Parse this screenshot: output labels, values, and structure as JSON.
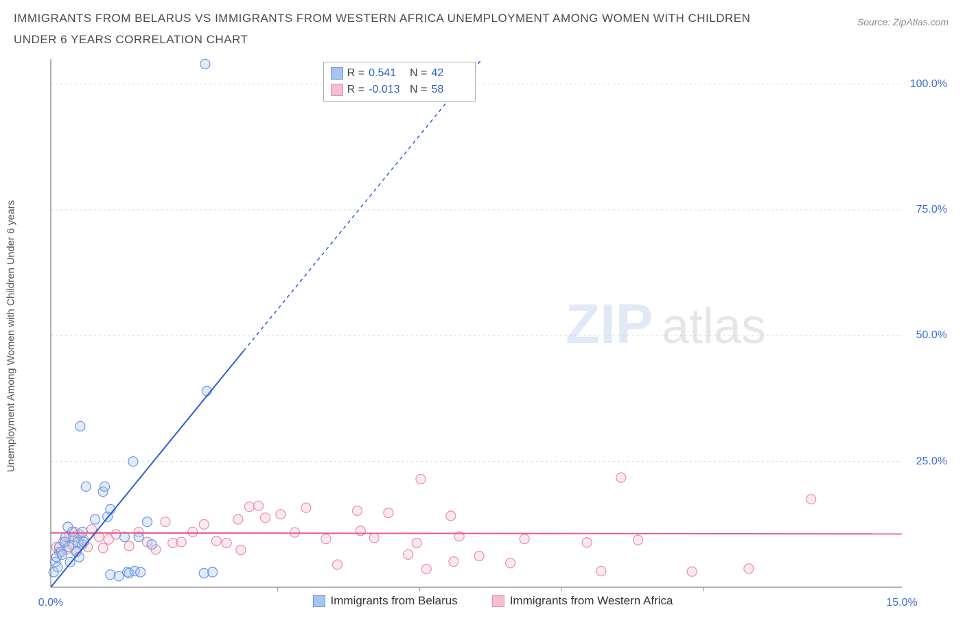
{
  "title": "IMMIGRANTS FROM BELARUS VS IMMIGRANTS FROM WESTERN AFRICA UNEMPLOYMENT AMONG WOMEN WITH CHILDREN UNDER 6 YEARS CORRELATION CHART",
  "source": "Source: ZipAtlas.com",
  "ylabel": "Unemployment Among Women with Children Under 6 years",
  "watermark_a": "ZIP",
  "watermark_b": "atlas",
  "chart": {
    "type": "scatter",
    "xlim": [
      0,
      15
    ],
    "ylim": [
      0,
      105
    ],
    "x_axis_color": "#3f6cd4",
    "y_axis_color": "#3f6cd4",
    "xticks": [
      {
        "v": 0.0,
        "label": "0.0%"
      },
      {
        "v": 15.0,
        "label": "15.0%"
      }
    ],
    "xticks_minor": [
      4.0,
      6.5,
      9.0,
      11.5
    ],
    "yticks": [
      {
        "v": 25,
        "label": "25.0%"
      },
      {
        "v": 50,
        "label": "50.0%"
      },
      {
        "v": 75,
        "label": "75.0%"
      },
      {
        "v": 100,
        "label": "100.0%"
      }
    ],
    "grid_color": "#d9d9d9",
    "background": "#ffffff",
    "marker_radius": 7,
    "series": {
      "belarus": {
        "label": "Immigrants from Belarus",
        "R": "0.541",
        "N": "42",
        "color_stroke": "#6a98e0",
        "color_fill": "#a9c5ef",
        "trend_color": "#2a5fd0",
        "trend_from": [
          0,
          0
        ],
        "trend_solid_to": [
          3.4,
          47
        ],
        "trend_dash_to": [
          7.6,
          105
        ],
        "points": [
          [
            0.05,
            3
          ],
          [
            0.08,
            5
          ],
          [
            0.1,
            6
          ],
          [
            0.12,
            4
          ],
          [
            0.15,
            8
          ],
          [
            0.18,
            7
          ],
          [
            0.2,
            6.5
          ],
          [
            0.25,
            9
          ],
          [
            0.26,
            10
          ],
          [
            0.3,
            12
          ],
          [
            0.32,
            8
          ],
          [
            0.34,
            5
          ],
          [
            0.38,
            11
          ],
          [
            0.4,
            10
          ],
          [
            0.45,
            7
          ],
          [
            0.48,
            9
          ],
          [
            0.5,
            6
          ],
          [
            0.55,
            8.5
          ],
          [
            0.56,
            11
          ],
          [
            0.58,
            9
          ],
          [
            0.52,
            32
          ],
          [
            0.62,
            20
          ],
          [
            0.92,
            19
          ],
          [
            0.95,
            20
          ],
          [
            1.0,
            14
          ],
          [
            1.05,
            15.5
          ],
          [
            1.45,
            25
          ],
          [
            1.35,
            3
          ],
          [
            1.05,
            2.5
          ],
          [
            1.2,
            2.2
          ],
          [
            1.38,
            2.8
          ],
          [
            1.48,
            3.2
          ],
          [
            1.58,
            3
          ],
          [
            1.3,
            10
          ],
          [
            1.55,
            10
          ],
          [
            1.7,
            13
          ],
          [
            1.78,
            8.5
          ],
          [
            2.85,
            3
          ],
          [
            2.7,
            2.8
          ],
          [
            2.75,
            39
          ],
          [
            2.72,
            104
          ],
          [
            0.78,
            13.5
          ]
        ]
      },
      "wafrica": {
        "label": "Immigrants from Western Africa",
        "R": "-0.013",
        "N": "58",
        "color_stroke": "#e690a8",
        "color_fill": "#f3c0ce",
        "trend_color": "#e75d8b",
        "trend_from": [
          0,
          10.8
        ],
        "trend_to": [
          15,
          10.6
        ],
        "points": [
          [
            0.1,
            8
          ],
          [
            0.15,
            7
          ],
          [
            0.22,
            9
          ],
          [
            0.28,
            7.5
          ],
          [
            0.32,
            10
          ],
          [
            0.38,
            8.5
          ],
          [
            0.42,
            11
          ],
          [
            0.46,
            7.2
          ],
          [
            0.5,
            10.5
          ],
          [
            0.58,
            9.5
          ],
          [
            0.65,
            8
          ],
          [
            0.72,
            11.5
          ],
          [
            0.85,
            10
          ],
          [
            0.92,
            7.8
          ],
          [
            1.02,
            9.5
          ],
          [
            1.15,
            10.5
          ],
          [
            1.38,
            8.2
          ],
          [
            1.55,
            11
          ],
          [
            1.7,
            9
          ],
          [
            1.85,
            7.5
          ],
          [
            2.02,
            13
          ],
          [
            2.15,
            8.8
          ],
          [
            2.3,
            9
          ],
          [
            2.5,
            11
          ],
          [
            2.7,
            12.5
          ],
          [
            2.92,
            9.2
          ],
          [
            3.1,
            8.8
          ],
          [
            3.3,
            13.5
          ],
          [
            3.35,
            7.4
          ],
          [
            3.5,
            16
          ],
          [
            3.78,
            13.8
          ],
          [
            3.66,
            16.2
          ],
          [
            4.05,
            14.5
          ],
          [
            4.3,
            10.9
          ],
          [
            4.5,
            15.8
          ],
          [
            4.85,
            9.6
          ],
          [
            5.05,
            4.5
          ],
          [
            5.4,
            15.2
          ],
          [
            5.46,
            11.2
          ],
          [
            5.7,
            9.8
          ],
          [
            5.95,
            14.8
          ],
          [
            6.3,
            6.5
          ],
          [
            6.45,
            8.8
          ],
          [
            6.52,
            21.5
          ],
          [
            6.62,
            3.6
          ],
          [
            7.05,
            14.2
          ],
          [
            7.1,
            5.1
          ],
          [
            7.2,
            10.1
          ],
          [
            7.55,
            6.2
          ],
          [
            8.1,
            4.8
          ],
          [
            8.35,
            9.6
          ],
          [
            9.45,
            8.9
          ],
          [
            9.7,
            3.2
          ],
          [
            10.05,
            21.8
          ],
          [
            10.35,
            9.4
          ],
          [
            11.3,
            3.1
          ],
          [
            12.3,
            3.7
          ],
          [
            13.4,
            17.5
          ]
        ]
      }
    }
  },
  "stats_box": {
    "Rlabel": "R =",
    "Nlabel": "N ="
  }
}
